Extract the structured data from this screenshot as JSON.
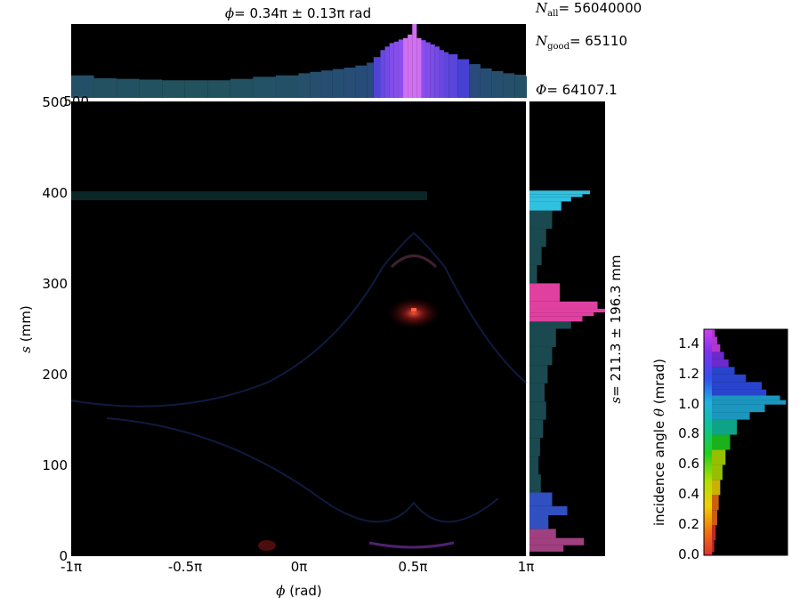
{
  "chart_data": [
    {
      "type": "heatmap",
      "name": "main 2D histogram (phi vs s)",
      "xlabel_sym": "ϕ",
      "xlabel_unit": "(rad)",
      "ylabel_sym": "s",
      "ylabel_unit": "(mm)",
      "xlim": [
        -1,
        1
      ],
      "ylim": [
        0,
        500
      ],
      "xticks": [
        -1,
        -0.5,
        0,
        0.5,
        1
      ],
      "xticklabels": [
        "-1π",
        "-0.5π",
        "0π",
        "0.5π",
        "1π"
      ],
      "yticks": [
        0,
        100,
        200,
        300,
        400,
        500
      ],
      "yticklabels": [
        "0",
        "100",
        "200",
        "300",
        "400",
        "500"
      ],
      "background": "#000000",
      "features": [
        {
          "kind": "band",
          "s": 398,
          "from_phi": -1,
          "to_phi": 0.72,
          "color": "#0e3a3c"
        },
        {
          "kind": "spot",
          "phi": 0.5,
          "s": 270,
          "color": "#ff5a3c"
        },
        {
          "kind": "spot",
          "phi": -0.12,
          "s": 12,
          "color": "#b02020"
        }
      ]
    },
    {
      "type": "bar",
      "name": "phi projection histogram (top)",
      "title_sym": "ϕ",
      "title_value": "= 0.34π ± 0.13π rad",
      "xlim": [
        -1,
        1
      ],
      "yticks": [
        500
      ],
      "yticklabels": [
        "500"
      ],
      "ylim": [
        480,
        585
      ],
      "x": [
        -1.0,
        -0.9,
        -0.8,
        -0.7,
        -0.6,
        -0.5,
        -0.4,
        -0.3,
        -0.2,
        -0.1,
        0.0,
        0.05,
        0.1,
        0.15,
        0.2,
        0.25,
        0.3,
        0.33,
        0.36,
        0.38,
        0.4,
        0.42,
        0.44,
        0.46,
        0.48,
        0.5,
        0.52,
        0.54,
        0.56,
        0.58,
        0.6,
        0.62,
        0.64,
        0.66,
        0.7,
        0.75,
        0.8,
        0.85,
        0.9,
        0.95,
        1.0
      ],
      "values": [
        512,
        508,
        507,
        506,
        505,
        505,
        505,
        507,
        510,
        512,
        515,
        517,
        519,
        521,
        523,
        526,
        530,
        538,
        548,
        553,
        558,
        560,
        563,
        565,
        570,
        585,
        565,
        562,
        559,
        556,
        553,
        548,
        545,
        542,
        535,
        528,
        522,
        518,
        515,
        513,
        511
      ]
    },
    {
      "type": "bar",
      "orientation": "horizontal",
      "name": "s projection histogram (right)",
      "side_label_sym": "s",
      "side_label_value": "= 211.3 ± 196.3 mm",
      "ylim": [
        0,
        500
      ],
      "s": [
        5,
        12,
        20,
        30,
        45,
        55,
        70,
        90,
        110,
        130,
        150,
        170,
        190,
        210,
        230,
        250,
        258,
        264,
        268,
        272,
        280,
        300,
        320,
        340,
        360,
        380,
        390,
        395,
        398
      ],
      "values": [
        0.45,
        0.72,
        0.35,
        0.25,
        0.5,
        0.3,
        0.15,
        0.12,
        0.14,
        0.18,
        0.22,
        0.2,
        0.24,
        0.3,
        0.35,
        0.55,
        0.7,
        0.85,
        1.0,
        0.9,
        0.4,
        0.1,
        0.16,
        0.22,
        0.3,
        0.42,
        0.55,
        0.7,
        0.8
      ]
    },
    {
      "type": "bar",
      "orientation": "horizontal",
      "name": "incidence angle histogram with colorbar",
      "ylabel": "incidence angle",
      "ylabel_sym": "θ",
      "ylabel_unit": "(mrad)",
      "ylim": [
        0.0,
        1.5
      ],
      "yticks": [
        0.0,
        0.2,
        0.4,
        0.6,
        0.8,
        1.0,
        1.2,
        1.4
      ],
      "yticklabels": [
        "0.0",
        "0.2",
        "0.4",
        "0.6",
        "0.8",
        "1.0",
        "1.2",
        "1.4"
      ],
      "theta": [
        0.02,
        0.1,
        0.2,
        0.3,
        0.4,
        0.5,
        0.6,
        0.7,
        0.8,
        0.9,
        0.95,
        1.0,
        1.03,
        1.06,
        1.1,
        1.15,
        1.2,
        1.25,
        1.3,
        1.35,
        1.4,
        1.45,
        1.5
      ],
      "values": [
        0.03,
        0.05,
        0.07,
        0.09,
        0.11,
        0.14,
        0.18,
        0.24,
        0.33,
        0.5,
        0.7,
        0.98,
        0.9,
        0.72,
        0.66,
        0.45,
        0.3,
        0.22,
        0.16,
        0.11,
        0.07,
        0.04,
        0.02
      ],
      "colormap": [
        "#e03030",
        "#f07010",
        "#f0d000",
        "#b0e000",
        "#20d020",
        "#10c0a0",
        "#20b0e0",
        "#3050f0",
        "#8030f0",
        "#d040f0"
      ]
    }
  ],
  "stats": {
    "n_all_label": "N",
    "n_all_sub": "all",
    "n_all_value": "= 56040000",
    "n_good_label": "N",
    "n_good_sub": "good",
    "n_good_value": "= 65110",
    "phi_label": "Φ",
    "phi_value": "= 64107.1"
  }
}
